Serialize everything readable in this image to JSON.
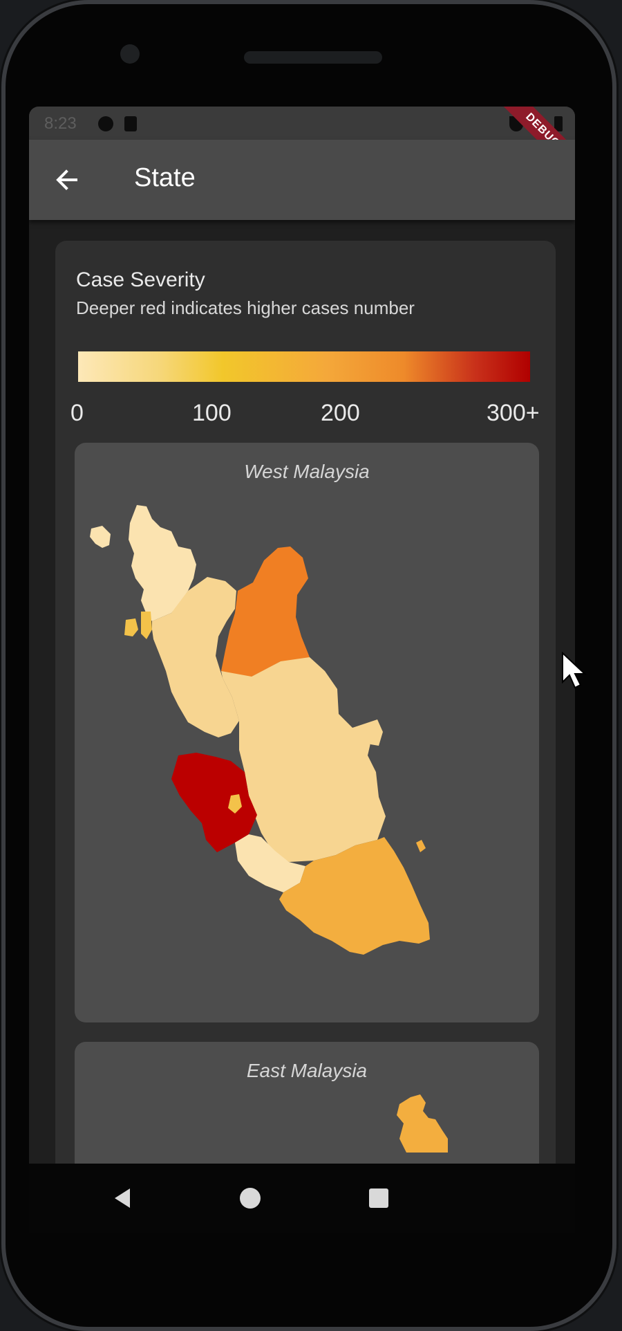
{
  "status_bar": {
    "time": "8:23",
    "debug_label": "DEBUG"
  },
  "app_bar": {
    "title": "State",
    "back_icon": "arrow-left-icon"
  },
  "legend": {
    "title": "Case Severity",
    "subtitle": "Deeper red indicates higher cases number",
    "ticks": [
      "0",
      "100",
      "200",
      "300+"
    ]
  },
  "maps": {
    "west": {
      "title": "West Malaysia"
    },
    "east": {
      "title": "East Malaysia"
    }
  },
  "colors": {
    "low": "#fbe3b0",
    "light": "#f7d591",
    "mid": "#f3ae3f",
    "high": "#f07f23",
    "max": "#bb0000",
    "accent_yellow": "#f3c24a"
  },
  "nav": {
    "back_icon": "triangle-back-icon",
    "home_icon": "circle-home-icon",
    "recents_icon": "square-recents-icon"
  }
}
